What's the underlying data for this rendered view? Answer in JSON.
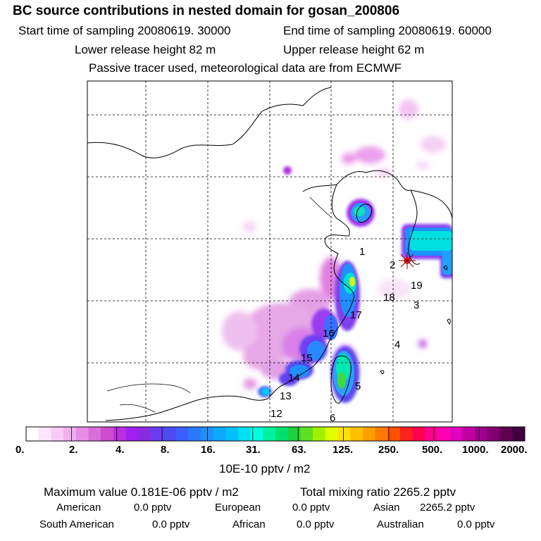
{
  "header": {
    "title": "BC  source contributions in nested domain for gosan_200806",
    "start_label": "Start time of sampling 20080619. 30000",
    "end_label": "End time of sampling 20080619. 60000",
    "lower_label": "Lower release height   82 m",
    "upper_label": "Upper release height   62 m",
    "note": "Passive tracer used, meteorological data are from ECMWF"
  },
  "map": {
    "region_labels": [
      "1",
      "2",
      "19",
      "18",
      "3",
      "17",
      "16",
      "4",
      "15",
      "14",
      "5",
      "13",
      "12",
      "6"
    ],
    "receptor_marker": "star-receptor"
  },
  "colorbar": {
    "tick_labels": [
      "0.",
      "2.",
      "4.",
      "8.",
      "16.",
      "31.",
      "63.",
      "125.",
      "250.",
      "500.",
      "1000.",
      "2000."
    ],
    "unit": "10E-10 pptv / m2",
    "colors": [
      "#ffffff",
      "#fbe6fb",
      "#f6ccf6",
      "#f0b0f0",
      "#e68ee6",
      "#d96ed9",
      "#cc4ccc",
      "#bb2ee0",
      "#a020f0",
      "#8a2be2",
      "#6a3cf0",
      "#4b4bf0",
      "#3a5fff",
      "#2a78ff",
      "#1e90ff",
      "#10a8ff",
      "#00c0ff",
      "#00e0f0",
      "#00ffe0",
      "#00f0a0",
      "#00e070",
      "#20d040",
      "#60e020",
      "#a0f000",
      "#e0ff00",
      "#ffe000",
      "#ffc000",
      "#ffa000",
      "#ff7a00",
      "#ff5000",
      "#ff2020",
      "#ff0050",
      "#ff0090",
      "#ff00b0",
      "#e000c0",
      "#c000a0",
      "#a00090",
      "#800070",
      "#600050",
      "#400040"
    ]
  },
  "summary": {
    "max_label": "Maximum value  0.181E-06 pptv / m2",
    "total_label": "Total mixing ratio     2265.2 pptv",
    "american_label": "American",
    "american_value": "0.0 pptv",
    "european_label": "European",
    "european_value": "0.0 pptv",
    "asian_label": "Asian",
    "asian_value": "2265.2 pptv",
    "south_american_label": "South American",
    "south_american_value": "0.0 pptv",
    "african_label": "African",
    "african_value": "0.0 pptv",
    "australian_label": "Australian",
    "australian_value": "0.0 pptv"
  }
}
